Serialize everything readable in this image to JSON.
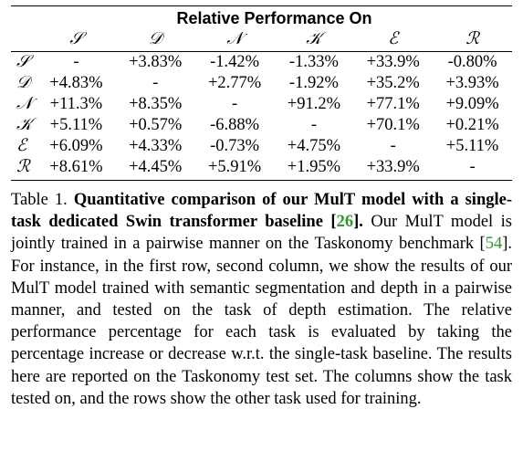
{
  "table": {
    "group_header": "Relative Performance On",
    "columns": [
      "𝒮",
      "𝒟",
      "𝒩",
      "𝒦",
      "ℰ",
      "ℛ"
    ],
    "rows": [
      {
        "label": "𝒮",
        "values": [
          "-",
          "+3.83%",
          "-1.42%",
          "-1.33%",
          "+33.9%",
          "-0.80%"
        ]
      },
      {
        "label": "𝒟",
        "values": [
          "+4.83%",
          "-",
          "+2.77%",
          "-1.92%",
          "+35.2%",
          "+3.93%"
        ]
      },
      {
        "label": "𝒩",
        "values": [
          "+11.3%",
          "+8.35%",
          "-",
          "+91.2%",
          "+77.1%",
          "+9.09%"
        ]
      },
      {
        "label": "𝒦",
        "values": [
          "+5.11%",
          "+0.57%",
          "-6.88%",
          "-",
          "+70.1%",
          "+0.21%"
        ]
      },
      {
        "label": "ℰ",
        "values": [
          "+6.09%",
          "+4.33%",
          "-0.73%",
          "+4.75%",
          "-",
          "+5.11%"
        ]
      },
      {
        "label": "ℛ",
        "values": [
          "+8.61%",
          "+4.45%",
          "+5.91%",
          "+1.95%",
          "+33.9%",
          "-"
        ]
      }
    ]
  },
  "caption": {
    "label": "Table 1.",
    "bold_text": "Quantitative comparison of our MulT model with a single-task dedicated Swin transformer baseline [",
    "cite1": "26",
    "bold_close": "].",
    "text1": " Our MulT model is jointly trained in a pairwise manner on the Taskonomy benchmark [",
    "cite2": "54",
    "text2": "]. For instance, in the first row, second column, we show the results of our MulT model trained with semantic segmentation and depth in a pairwise manner, and tested on the task of depth estimation. The relative performance percentage for each task is evaluated by taking the percentage increase or decrease w.r.t. the single-task baseline. The results here are reported on the Taskonomy test set. The columns show the task tested on, and the rows show the other task used for training.",
    "cite_color": "#2a9a2a"
  }
}
